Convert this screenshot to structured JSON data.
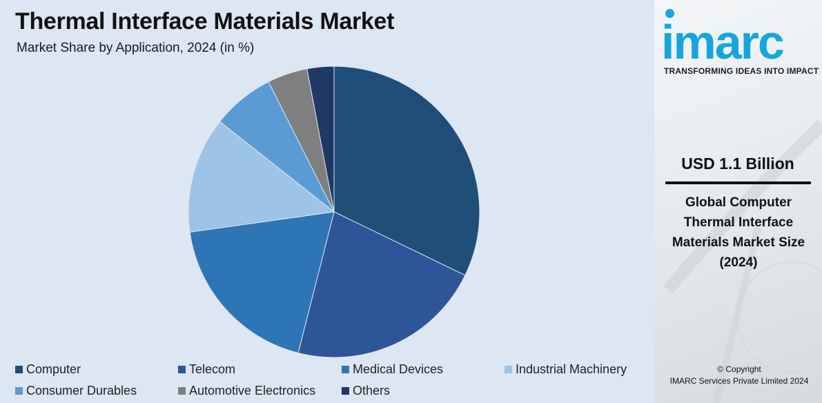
{
  "title": "Thermal Interface Materials Market",
  "subtitle": "Market Share by Application, 2024 (in %)",
  "chart_data": {
    "type": "pie",
    "title": "Thermal Interface Materials Market",
    "subtitle": "Market Share by Application, 2024 (in %)",
    "legend_position": "bottom",
    "categories": [
      "Computer",
      "Telecom",
      "Medical Devices",
      "Industrial Machinery",
      "Consumer Durables",
      "Automotive Electronics",
      "Others"
    ],
    "values": [
      32.5,
      22.0,
      19.0,
      13.0,
      7.0,
      4.5,
      3.0
    ],
    "colors": [
      "#1f4e79",
      "#2e5597",
      "#2e75b6",
      "#9dc3e6",
      "#5b9bd5",
      "#7f7f7f",
      "#203864"
    ]
  },
  "side_panel": {
    "logo_text": "imarc",
    "tagline": "TRANSFORMING IDEAS INTO IMPACT",
    "value": "USD 1.1 Billion",
    "description": "Global Computer Thermal Interface Materials Market Size (2024)",
    "copyright_line1": "© Copyright",
    "copyright_line2": "IMARC Services Private Limited 2024"
  }
}
